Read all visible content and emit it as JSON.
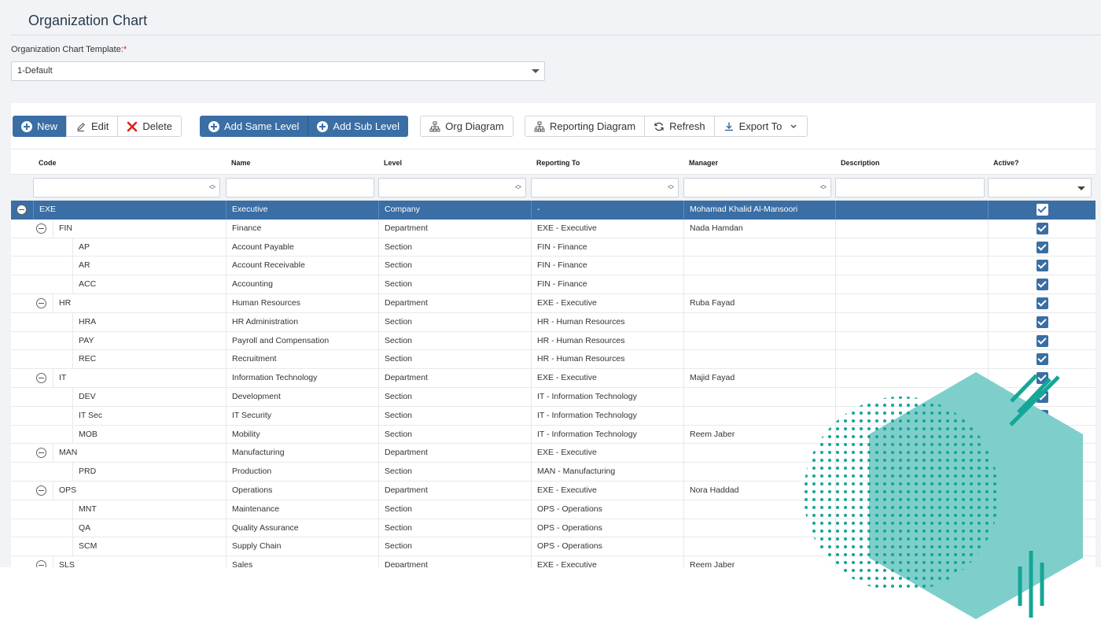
{
  "page": {
    "title": "Organization Chart"
  },
  "template": {
    "label": "Organization Chart Template:",
    "required_mark": "*",
    "value": "1-Default"
  },
  "toolbar": {
    "new": "New",
    "edit": "Edit",
    "delete": "Delete",
    "add_same_level": "Add Same Level",
    "add_sub_level": "Add Sub Level",
    "org_diagram": "Org Diagram",
    "reporting_diagram": "Reporting Diagram",
    "refresh": "Refresh",
    "export_to": "Export To"
  },
  "columns": [
    "Code",
    "Name",
    "Level",
    "Reporting To",
    "Manager",
    "Description",
    "Active?"
  ],
  "rows": [
    {
      "code": "EXE",
      "name": "Executive",
      "level": "Company",
      "reporting_to": "-",
      "manager": "Mohamad Khalid Al-Mansoori",
      "description": "",
      "active": true,
      "depth": 0,
      "expandable": true,
      "selected": true
    },
    {
      "code": "FIN",
      "name": "Finance",
      "level": "Department",
      "reporting_to": "EXE - Executive",
      "manager": "Nada Hamdan",
      "description": "",
      "active": true,
      "depth": 1,
      "expandable": true
    },
    {
      "code": "AP",
      "name": "Account Payable",
      "level": "Section",
      "reporting_to": "FIN - Finance",
      "manager": "",
      "description": "",
      "active": true,
      "depth": 2
    },
    {
      "code": "AR",
      "name": "Account Receivable",
      "level": "Section",
      "reporting_to": "FIN - Finance",
      "manager": "",
      "description": "",
      "active": true,
      "depth": 2
    },
    {
      "code": "ACC",
      "name": "Accounting",
      "level": "Section",
      "reporting_to": "FIN - Finance",
      "manager": "",
      "description": "",
      "active": true,
      "depth": 2
    },
    {
      "code": "HR",
      "name": "Human Resources",
      "level": "Department",
      "reporting_to": "EXE - Executive",
      "manager": "Ruba Fayad",
      "description": "",
      "active": true,
      "depth": 1,
      "expandable": true
    },
    {
      "code": "HRA",
      "name": "HR Administration",
      "level": "Section",
      "reporting_to": "HR - Human Resources",
      "manager": "",
      "description": "",
      "active": true,
      "depth": 2
    },
    {
      "code": "PAY",
      "name": "Payroll and Compensation",
      "level": "Section",
      "reporting_to": "HR - Human Resources",
      "manager": "",
      "description": "",
      "active": true,
      "depth": 2
    },
    {
      "code": "REC",
      "name": "Recruitment",
      "level": "Section",
      "reporting_to": "HR - Human Resources",
      "manager": "",
      "description": "",
      "active": true,
      "depth": 2
    },
    {
      "code": "IT",
      "name": "Information Technology",
      "level": "Department",
      "reporting_to": "EXE - Executive",
      "manager": "Majid Fayad",
      "description": "",
      "active": true,
      "depth": 1,
      "expandable": true
    },
    {
      "code": "DEV",
      "name": "Development",
      "level": "Section",
      "reporting_to": "IT - Information Technology",
      "manager": "",
      "description": "",
      "active": true,
      "depth": 2
    },
    {
      "code": "IT Sec",
      "name": "IT Security",
      "level": "Section",
      "reporting_to": "IT - Information Technology",
      "manager": "",
      "description": "",
      "active": true,
      "depth": 2
    },
    {
      "code": "MOB",
      "name": "Mobility",
      "level": "Section",
      "reporting_to": "IT - Information Technology",
      "manager": "Reem Jaber",
      "description": "",
      "active": true,
      "depth": 2
    },
    {
      "code": "MAN",
      "name": "Manufacturing",
      "level": "Department",
      "reporting_to": "EXE - Executive",
      "manager": "",
      "description": "",
      "active": true,
      "depth": 1,
      "expandable": true
    },
    {
      "code": "PRD",
      "name": "Production",
      "level": "Section",
      "reporting_to": "MAN - Manufacturing",
      "manager": "",
      "description": "",
      "active": true,
      "depth": 2
    },
    {
      "code": "OPS",
      "name": "Operations",
      "level": "Department",
      "reporting_to": "EXE - Executive",
      "manager": "Nora Haddad",
      "description": "",
      "active": true,
      "depth": 1,
      "expandable": true
    },
    {
      "code": "MNT",
      "name": "Maintenance",
      "level": "Section",
      "reporting_to": "OPS - Operations",
      "manager": "",
      "description": "",
      "active": true,
      "depth": 2
    },
    {
      "code": "QA",
      "name": "Quality Assurance",
      "level": "Section",
      "reporting_to": "OPS - Operations",
      "manager": "",
      "description": "",
      "active": true,
      "depth": 2
    },
    {
      "code": "SCM",
      "name": "Supply Chain",
      "level": "Section",
      "reporting_to": "OPS - Operations",
      "manager": "",
      "description": "",
      "active": true,
      "depth": 2
    },
    {
      "code": "SLS",
      "name": "Sales",
      "level": "Department",
      "reporting_to": "EXE - Executive",
      "manager": "Reem Jaber",
      "description": "",
      "active": true,
      "depth": 1,
      "expandable": true
    }
  ],
  "colors": {
    "primary": "#3a6ea5",
    "teal_dark": "#14a696",
    "teal_light": "#7ecfcc"
  }
}
